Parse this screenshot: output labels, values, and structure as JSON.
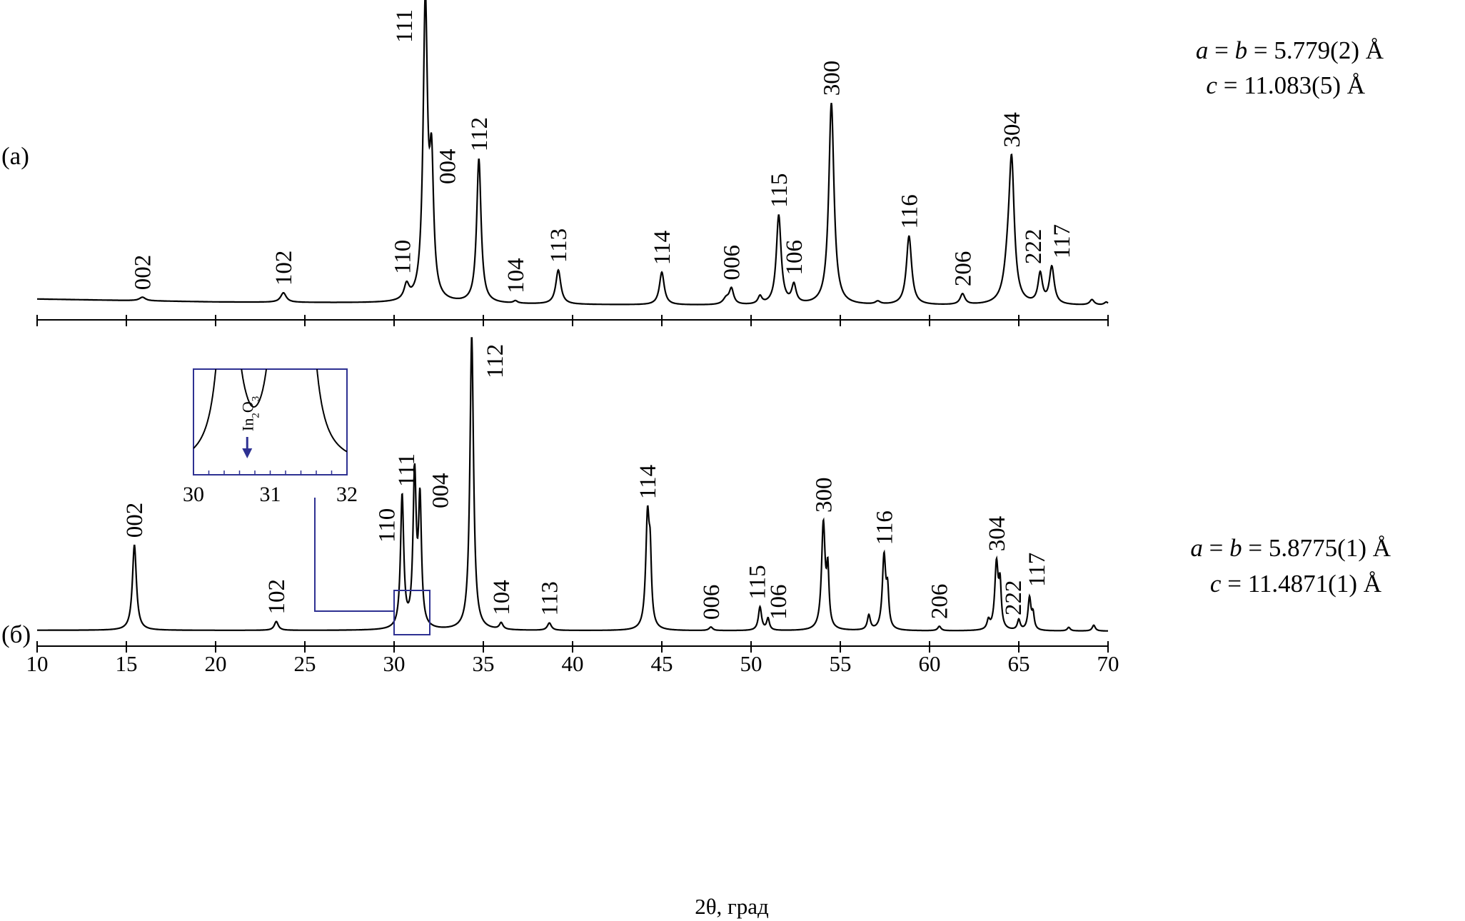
{
  "chart_data": [
    {
      "type": "line",
      "panel": "a",
      "panel_label": "(a)",
      "xlabel": "",
      "xlim": [
        10,
        70
      ],
      "ylabel": "",
      "ylim": [
        0,
        1.0
      ],
      "params": [
        {
          "italic": "a",
          "text": " = ",
          "italic2": "b",
          "rest": " = 5.779(2) Å"
        },
        {
          "italic": "c",
          "text": "",
          "italic2": "",
          "rest": " = 11.083(5) Å"
        }
      ],
      "baseline": [
        [
          10,
          0.022
        ],
        [
          20,
          0.012
        ],
        [
          30,
          0.008
        ],
        [
          40,
          0.003
        ],
        [
          50,
          0.0
        ],
        [
          70,
          0.0
        ]
      ],
      "peaks": [
        {
          "x": 15.9,
          "h": 0.012,
          "w": 0.3,
          "label": "002",
          "labeled": true
        },
        {
          "x": 23.8,
          "h": 0.032,
          "w": 0.28,
          "label": "102",
          "labeled": true
        },
        {
          "x": 30.7,
          "h": 0.05,
          "w": 0.25,
          "label": "110",
          "labeled": true
        },
        {
          "x": 31.75,
          "h": 0.995,
          "w": 0.22,
          "label": "111",
          "labeled": true
        },
        {
          "x": 32.1,
          "h": 0.415,
          "w": 0.2,
          "label": "004",
          "labeled": true
        },
        {
          "x": 34.75,
          "h": 0.485,
          "w": 0.22,
          "label": "112",
          "labeled": true
        },
        {
          "x": 36.8,
          "h": 0.008,
          "w": 0.2,
          "label": "104",
          "labeled": true
        },
        {
          "x": 39.2,
          "h": 0.115,
          "w": 0.25,
          "label": "113",
          "labeled": true
        },
        {
          "x": 45.0,
          "h": 0.11,
          "w": 0.24,
          "label": "114",
          "labeled": true
        },
        {
          "x": 48.6,
          "h": 0.02,
          "w": 0.3,
          "label": "",
          "labeled": false
        },
        {
          "x": 48.9,
          "h": 0.052,
          "w": 0.22,
          "label": "006",
          "labeled": true
        },
        {
          "x": 50.5,
          "h": 0.026,
          "w": 0.2,
          "label": "",
          "labeled": false
        },
        {
          "x": 51.55,
          "h": 0.3,
          "w": 0.24,
          "label": "115",
          "labeled": true
        },
        {
          "x": 52.4,
          "h": 0.062,
          "w": 0.22,
          "label": "106",
          "labeled": true
        },
        {
          "x": 54.5,
          "h": 0.68,
          "w": 0.26,
          "label": "300",
          "labeled": true
        },
        {
          "x": 57.1,
          "h": 0.01,
          "w": 0.25,
          "label": "",
          "labeled": false
        },
        {
          "x": 58.85,
          "h": 0.232,
          "w": 0.26,
          "label": "116",
          "labeled": true
        },
        {
          "x": 61.85,
          "h": 0.036,
          "w": 0.24,
          "label": "206",
          "labeled": true
        },
        {
          "x": 64.6,
          "h": 0.435,
          "w": 0.26,
          "label": "304",
          "labeled": true
        },
        {
          "x": 64.4,
          "h": 0.11,
          "w": 0.4,
          "label": "",
          "labeled": false
        },
        {
          "x": 66.2,
          "h": 0.1,
          "w": 0.22,
          "label": "222",
          "labeled": true
        },
        {
          "x": 66.85,
          "h": 0.125,
          "w": 0.24,
          "label": "117",
          "labeled": true
        },
        {
          "x": 69.1,
          "h": 0.018,
          "w": 0.22,
          "label": "",
          "labeled": false
        },
        {
          "x": 69.9,
          "h": 0.01,
          "w": 0.2,
          "label": "",
          "labeled": false
        }
      ]
    },
    {
      "type": "line",
      "panel": "б",
      "panel_label": "(б)",
      "xlabel": "2θ, град",
      "xlim": [
        10,
        70
      ],
      "xticks": [
        10,
        15,
        20,
        25,
        30,
        35,
        40,
        45,
        50,
        55,
        60,
        65,
        70
      ],
      "ylabel": "",
      "ylim": [
        0,
        1.0
      ],
      "params": [
        {
          "italic": "a",
          "text": " = ",
          "italic2": "b",
          "rest": " = 5.8775(1) Å"
        },
        {
          "italic": "c",
          "text": "",
          "italic2": "",
          "rest": " = 11.4871(1) Å"
        }
      ],
      "baseline": [
        [
          10,
          0.003
        ],
        [
          70,
          0.0
        ]
      ],
      "peaks": [
        {
          "x": 15.45,
          "h": 0.29,
          "w": 0.2,
          "label": "002",
          "labeled": true
        },
        {
          "x": 23.4,
          "h": 0.03,
          "w": 0.2,
          "label": "102",
          "labeled": true
        },
        {
          "x": 30.45,
          "h": 0.45,
          "w": 0.16,
          "label": "110",
          "labeled": true
        },
        {
          "x": 31.15,
          "h": 0.515,
          "w": 0.16,
          "label": "111",
          "labeled": true
        },
        {
          "x": 31.45,
          "h": 0.42,
          "w": 0.15,
          "label": "004",
          "labeled": true
        },
        {
          "x": 34.35,
          "h": 1.0,
          "w": 0.18,
          "label": "112",
          "labeled": true
        },
        {
          "x": 36.0,
          "h": 0.022,
          "w": 0.18,
          "label": "104",
          "labeled": true
        },
        {
          "x": 38.7,
          "h": 0.025,
          "w": 0.2,
          "label": "113",
          "labeled": true
        },
        {
          "x": 44.2,
          "h": 0.38,
          "w": 0.18,
          "label": "114",
          "labeled": true
        },
        {
          "x": 44.35,
          "h": 0.19,
          "w": 0.12,
          "label": "",
          "labeled": false
        },
        {
          "x": 47.75,
          "h": 0.012,
          "w": 0.18,
          "label": "006",
          "labeled": true
        },
        {
          "x": 50.5,
          "h": 0.08,
          "w": 0.16,
          "label": "115",
          "labeled": true
        },
        {
          "x": 50.95,
          "h": 0.04,
          "w": 0.14,
          "label": "106",
          "labeled": true
        },
        {
          "x": 54.05,
          "h": 0.36,
          "w": 0.18,
          "label": "300",
          "labeled": true
        },
        {
          "x": 54.3,
          "h": 0.18,
          "w": 0.12,
          "label": "",
          "labeled": false
        },
        {
          "x": 56.6,
          "h": 0.05,
          "w": 0.15,
          "label": "",
          "labeled": false
        },
        {
          "x": 57.45,
          "h": 0.25,
          "w": 0.17,
          "label": "116",
          "labeled": true
        },
        {
          "x": 57.65,
          "h": 0.115,
          "w": 0.12,
          "label": "",
          "labeled": false
        },
        {
          "x": 60.55,
          "h": 0.015,
          "w": 0.16,
          "label": "206",
          "labeled": true
        },
        {
          "x": 63.3,
          "h": 0.03,
          "w": 0.14,
          "label": "",
          "labeled": false
        },
        {
          "x": 63.75,
          "h": 0.225,
          "w": 0.17,
          "label": "304",
          "labeled": true
        },
        {
          "x": 63.95,
          "h": 0.14,
          "w": 0.12,
          "label": "",
          "labeled": false
        },
        {
          "x": 65.0,
          "h": 0.035,
          "w": 0.14,
          "label": "222",
          "labeled": true
        },
        {
          "x": 65.6,
          "h": 0.11,
          "w": 0.15,
          "label": "117",
          "labeled": true
        },
        {
          "x": 65.8,
          "h": 0.05,
          "w": 0.12,
          "label": "",
          "labeled": false
        },
        {
          "x": 67.8,
          "h": 0.012,
          "w": 0.15,
          "label": "",
          "labeled": false
        },
        {
          "x": 69.2,
          "h": 0.02,
          "w": 0.15,
          "label": "",
          "labeled": false
        }
      ],
      "inset": {
        "xlim": [
          30,
          32
        ],
        "xticks": [
          30,
          31,
          32
        ],
        "zoom_window_y": [
          0.0,
          0.14
        ],
        "annotation": {
          "pre": "In",
          "sub1": "2",
          "mid": "O",
          "sub2": "3",
          "x": 30.7
        },
        "note": "zoomed view of region 30–32° showing weak In2O3 reflection"
      }
    }
  ],
  "colors": {
    "curve": "#000000",
    "inset_frame": "#2e3192",
    "arrow": "#2e3192"
  }
}
